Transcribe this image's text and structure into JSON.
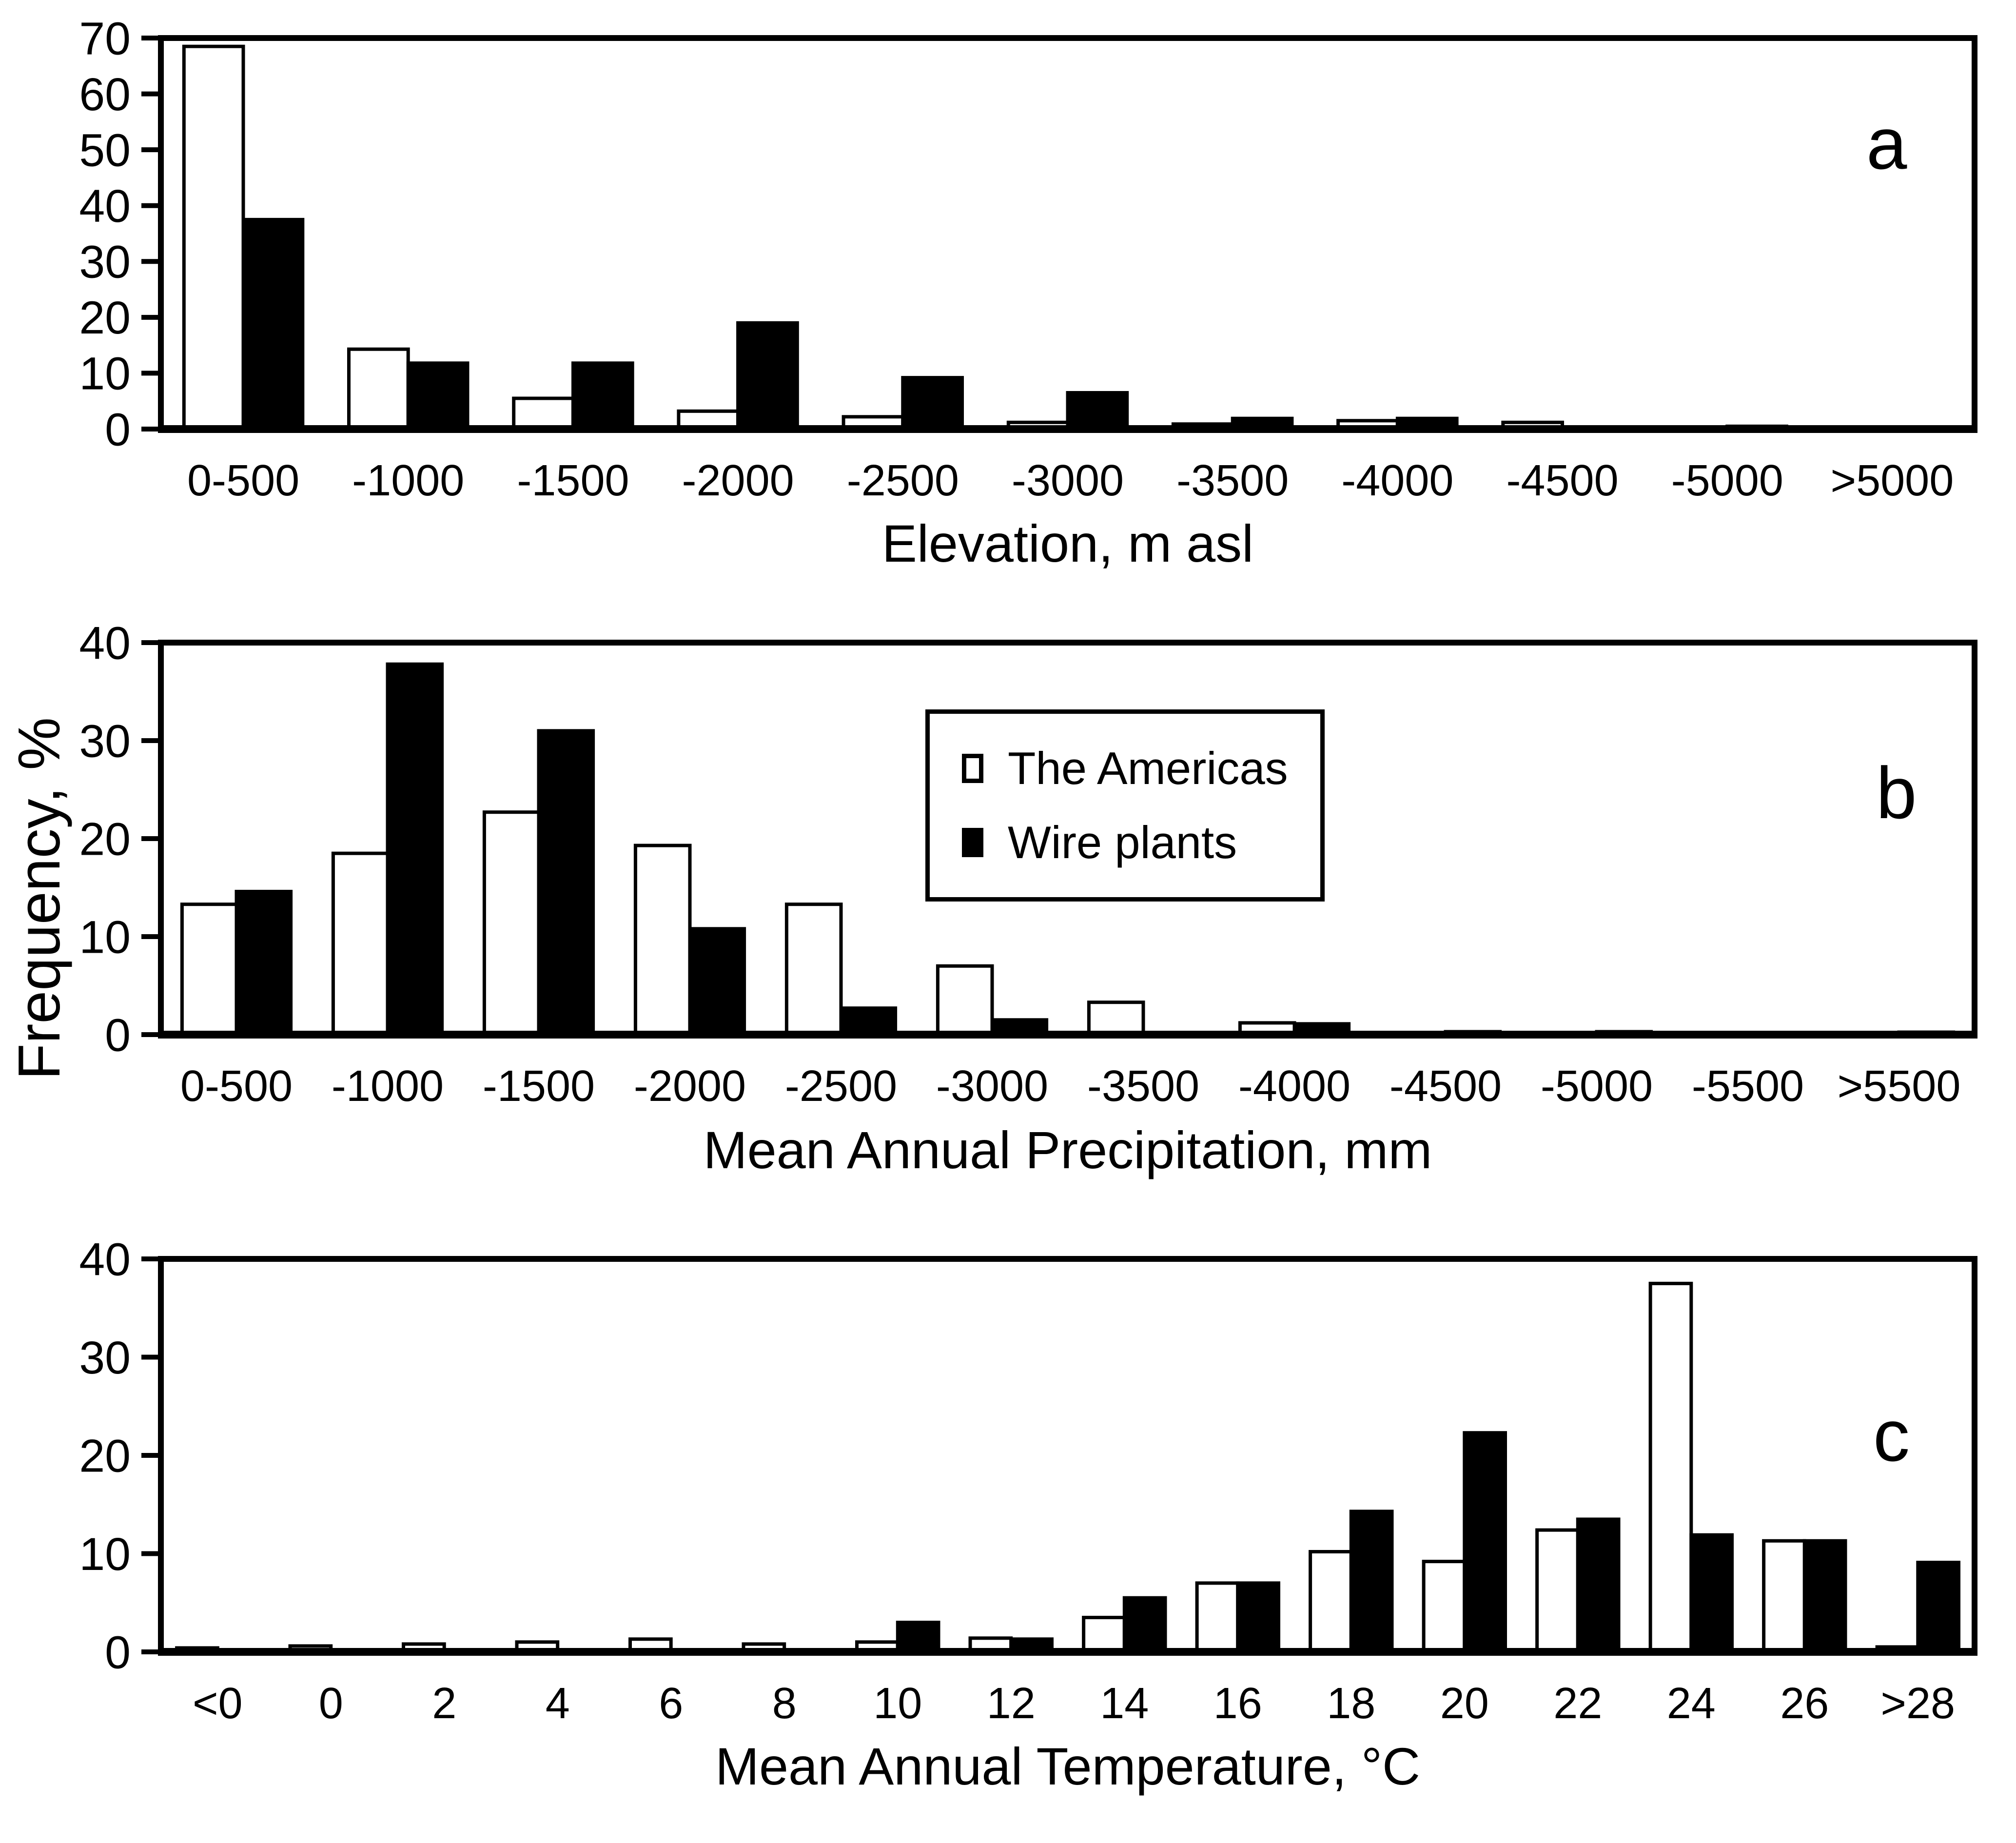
{
  "figure": {
    "background": "#ffffff",
    "ink_color": "#000000",
    "y_axis_label": "Frequency, %"
  },
  "legend": {
    "items": [
      {
        "label": "The Americas",
        "swatch": "white-square-icon",
        "color": "#ffffff"
      },
      {
        "label": "Wire plants",
        "swatch": "black-square-icon",
        "color": "#000000"
      }
    ]
  },
  "chart_data": [
    {
      "type": "bar",
      "panel_letter": "a",
      "title": "",
      "xlabel": "Elevation, m asl",
      "ylabel": "Frequency, %",
      "ylim": [
        0,
        70
      ],
      "yticks": [
        0,
        10,
        20,
        30,
        40,
        50,
        60,
        70
      ],
      "grid": false,
      "legend_position": "none",
      "categories": [
        "0-500",
        "-1000",
        "-1500",
        "-2000",
        "-2500",
        "-3000",
        "-3500",
        "-4000",
        "-4500",
        "-5000",
        ">5000"
      ],
      "series": [
        {
          "name": "The Americas",
          "color": "#ffffff",
          "values": [
            68.5,
            14.3,
            5.5,
            3.2,
            2.2,
            1.2,
            0.9,
            1.5,
            1.2,
            0,
            0
          ]
        },
        {
          "name": "Wire plants",
          "color": "#000000",
          "values": [
            37.5,
            11.8,
            11.8,
            19.0,
            9.2,
            6.5,
            1.9,
            1.9,
            0,
            0.5,
            0.1
          ]
        }
      ]
    },
    {
      "type": "bar",
      "panel_letter": "b",
      "title": "",
      "xlabel": "Mean Annual Precipitation, mm",
      "ylabel": "Frequency, %",
      "ylim": [
        0,
        40
      ],
      "yticks": [
        0,
        10,
        20,
        30,
        40
      ],
      "grid": false,
      "legend_position": "inside-top-center",
      "categories": [
        "0-500",
        "-1000",
        "-1500",
        "-2000",
        "-2500",
        "-3000",
        "-3500",
        "-4000",
        "-4500",
        "-5000",
        "-5500",
        ">5500"
      ],
      "series": [
        {
          "name": "The Americas",
          "color": "#ffffff",
          "values": [
            13.3,
            18.5,
            22.7,
            19.3,
            13.3,
            7.0,
            3.3,
            1.2,
            0.2,
            0.2,
            0.1,
            0.1
          ]
        },
        {
          "name": "Wire plants",
          "color": "#000000",
          "values": [
            14.6,
            37.8,
            31.0,
            10.8,
            2.7,
            1.5,
            0.2,
            1.1,
            0.3,
            0.3,
            0.15,
            0.25
          ]
        }
      ]
    },
    {
      "type": "bar",
      "panel_letter": "c",
      "title": "",
      "xlabel": "Mean Annual Temperature, °C",
      "ylabel": "Frequency, %",
      "ylim": [
        0,
        40
      ],
      "yticks": [
        0,
        10,
        20,
        30,
        40
      ],
      "grid": false,
      "legend_position": "none",
      "categories": [
        "<0",
        "0",
        "2",
        "4",
        "6",
        "8",
        "10",
        "12",
        "14",
        "16",
        "18",
        "20",
        "22",
        "24",
        "26",
        ">28"
      ],
      "series": [
        {
          "name": "The Americas",
          "color": "#ffffff",
          "values": [
            0.4,
            0.6,
            0.8,
            1.0,
            1.3,
            0.8,
            1.0,
            1.4,
            3.5,
            7.0,
            10.2,
            9.2,
            12.4,
            37.5,
            11.3,
            0.5
          ]
        },
        {
          "name": "Wire plants",
          "color": "#000000",
          "values": [
            0,
            0,
            0,
            0.2,
            0,
            0,
            3.0,
            1.3,
            5.5,
            7.0,
            14.3,
            22.3,
            13.5,
            11.9,
            11.3,
            9.1
          ]
        }
      ]
    }
  ]
}
